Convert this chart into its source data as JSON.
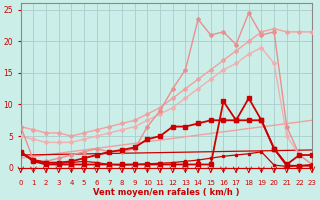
{
  "bg_color": "#cceee8",
  "grid_color": "#aacccc",
  "xlabel": "Vent moyen/en rafales ( km/h )",
  "xlabel_color": "#cc0000",
  "tick_color": "#cc0000",
  "xlim": [
    0,
    23
  ],
  "ylim": [
    0,
    26
  ],
  "xticks": [
    0,
    1,
    2,
    3,
    4,
    5,
    6,
    7,
    8,
    9,
    10,
    11,
    12,
    13,
    14,
    15,
    16,
    17,
    18,
    19,
    20,
    21,
    22,
    23
  ],
  "yticks": [
    0,
    5,
    10,
    15,
    20,
    25
  ],
  "lines": [
    {
      "x": [
        0,
        1,
        2,
        3,
        4,
        5,
        6,
        7,
        8,
        9,
        10,
        11,
        12,
        13,
        14,
        15,
        16,
        17,
        18,
        19,
        20,
        21,
        22,
        23
      ],
      "y": [
        6.5,
        6.0,
        5.5,
        5.5,
        5.0,
        5.5,
        6.0,
        6.5,
        7.0,
        7.5,
        8.5,
        9.5,
        11.0,
        12.5,
        14.0,
        15.5,
        17.0,
        18.5,
        20.0,
        21.5,
        22.0,
        21.5,
        21.5,
        21.5
      ],
      "color": "#f0a0a0",
      "linewidth": 1.0,
      "marker": "D",
      "markersize": 2.0
    },
    {
      "x": [
        0,
        1,
        2,
        3,
        4,
        5,
        6,
        7,
        8,
        9,
        10,
        11,
        12,
        13,
        14,
        15,
        16,
        17,
        18,
        19,
        20,
        21,
        22,
        23
      ],
      "y": [
        5.0,
        4.5,
        4.0,
        4.0,
        4.0,
        4.5,
        5.0,
        5.5,
        6.0,
        6.5,
        7.5,
        8.5,
        9.5,
        11.0,
        12.5,
        14.0,
        15.5,
        16.5,
        18.0,
        19.0,
        16.5,
        5.0,
        2.0,
        0.5
      ],
      "color": "#f0b0b0",
      "linewidth": 1.0,
      "marker": "D",
      "markersize": 2.0
    },
    {
      "x": [
        0,
        1,
        2,
        3,
        4,
        5,
        6,
        7,
        8,
        9,
        10,
        11,
        12,
        13,
        14,
        15,
        16,
        17,
        18,
        19,
        20,
        21,
        22,
        23
      ],
      "y": [
        6.5,
        1.2,
        1.0,
        1.5,
        2.0,
        2.5,
        3.0,
        2.5,
        2.5,
        3.0,
        6.5,
        9.0,
        12.5,
        15.5,
        23.5,
        21.0,
        21.5,
        19.5,
        24.5,
        21.0,
        21.5,
        6.5,
        2.0,
        0.5
      ],
      "color": "#e89090",
      "linewidth": 1.0,
      "marker": "D",
      "markersize": 2.0
    },
    {
      "x": [
        0,
        1,
        2,
        3,
        4,
        5,
        6,
        7,
        8,
        9,
        10,
        11,
        12,
        13,
        14,
        15,
        16,
        17,
        18,
        19,
        20,
        21,
        22,
        23
      ],
      "y": [
        2.3,
        1.2,
        0.8,
        0.8,
        1.0,
        1.5,
        2.0,
        2.5,
        2.8,
        3.2,
        4.5,
        5.0,
        6.5,
        6.5,
        7.0,
        7.5,
        7.5,
        7.5,
        7.5,
        7.5,
        3.0,
        0.5,
        2.0,
        2.0
      ],
      "color": "#cc0000",
      "linewidth": 1.3,
      "marker": "s",
      "markersize": 2.5
    },
    {
      "x": [
        0,
        1,
        2,
        3,
        4,
        5,
        6,
        7,
        8,
        9,
        10,
        11,
        12,
        13,
        14,
        15,
        16,
        17,
        18,
        19,
        20,
        21,
        22,
        23
      ],
      "y": [
        2.5,
        1.0,
        0.5,
        0.5,
        0.5,
        0.5,
        0.5,
        0.5,
        0.5,
        0.5,
        0.5,
        0.5,
        0.5,
        0.5,
        0.5,
        0.5,
        10.5,
        7.5,
        11.0,
        7.5,
        3.0,
        0.3,
        0.3,
        0.3
      ],
      "color": "#cc0000",
      "linewidth": 1.3,
      "marker": "s",
      "markersize": 2.5
    },
    {
      "x": [
        0,
        1,
        2,
        3,
        4,
        5,
        6,
        7,
        8,
        9,
        10,
        11,
        12,
        13,
        14,
        15,
        16,
        17,
        18,
        19,
        20,
        21,
        22,
        23
      ],
      "y": [
        2.5,
        1.2,
        0.8,
        0.7,
        0.8,
        1.0,
        0.8,
        0.5,
        0.4,
        0.5,
        0.6,
        0.7,
        0.8,
        1.0,
        1.2,
        1.5,
        1.8,
        2.0,
        2.2,
        2.5,
        0.4,
        0.2,
        0.3,
        0.5
      ],
      "color": "#cc0000",
      "linewidth": 0.9,
      "marker": "s",
      "markersize": 1.8
    },
    {
      "x": [
        0,
        23
      ],
      "y": [
        1.5,
        7.5
      ],
      "color": "#f0a0a0",
      "linewidth": 1.0,
      "marker": null,
      "markersize": 0
    },
    {
      "x": [
        0,
        23
      ],
      "y": [
        2.0,
        2.8
      ],
      "color": "#cc0000",
      "linewidth": 0.9,
      "marker": null,
      "markersize": 0
    }
  ],
  "wind_arrows_x": [
    0,
    1,
    2,
    3,
    4,
    5,
    6,
    7,
    8,
    9,
    10,
    11,
    12,
    13,
    14,
    15,
    16,
    17,
    18,
    19,
    20,
    21,
    22,
    23
  ],
  "bottom_line_y": 0.15
}
